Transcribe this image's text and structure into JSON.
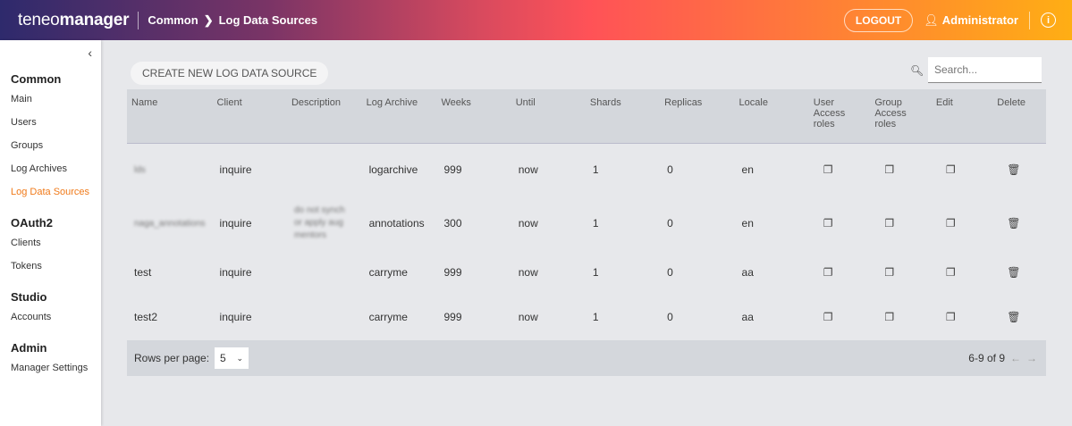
{
  "header": {
    "logo_light": "teneo",
    "logo_bold": "manager",
    "breadcrumb": [
      "Common",
      "Log Data Sources"
    ],
    "logout": "LOGOUT",
    "user": "Administrator"
  },
  "sidebar": {
    "sections": [
      {
        "title": "Common",
        "items": [
          "Main",
          "Users",
          "Groups",
          "Log Archives",
          "Log Data Sources"
        ]
      },
      {
        "title": "OAuth2",
        "items": [
          "Clients",
          "Tokens"
        ]
      },
      {
        "title": "Studio",
        "items": [
          "Accounts"
        ]
      },
      {
        "title": "Admin",
        "items": [
          "Manager Settings"
        ]
      }
    ],
    "active": "Log Data Sources",
    "accent": "#f07a1a"
  },
  "toolbar": {
    "create": "CREATE NEW LOG DATA SOURCE",
    "search_placeholder": "Search..."
  },
  "table": {
    "columns": [
      "Name",
      "Client",
      "Description",
      "Log Archive",
      "Weeks",
      "Until",
      "Shards",
      "Replicas",
      "Locale",
      "User Access roles",
      "Group Access roles",
      "Edit",
      "Delete"
    ],
    "rows": [
      [
        "lds",
        "inquire",
        "",
        "logarchive",
        "999",
        "now",
        "1",
        "0",
        "en"
      ],
      [
        "naga_annotations",
        "inquire",
        "do not synch or apply aug mentors",
        "annotations",
        "300",
        "now",
        "1",
        "0",
        "en"
      ],
      [
        "test",
        "inquire",
        "",
        "carryme",
        "999",
        "now",
        "1",
        "0",
        "aa"
      ],
      [
        "test2",
        "inquire",
        "",
        "carryme",
        "999",
        "now",
        "1",
        "0",
        "aa"
      ]
    ]
  },
  "footer": {
    "rows_per_page_label": "Rows per page:",
    "rows_per_page": "5",
    "range": "6-9 of 9"
  }
}
